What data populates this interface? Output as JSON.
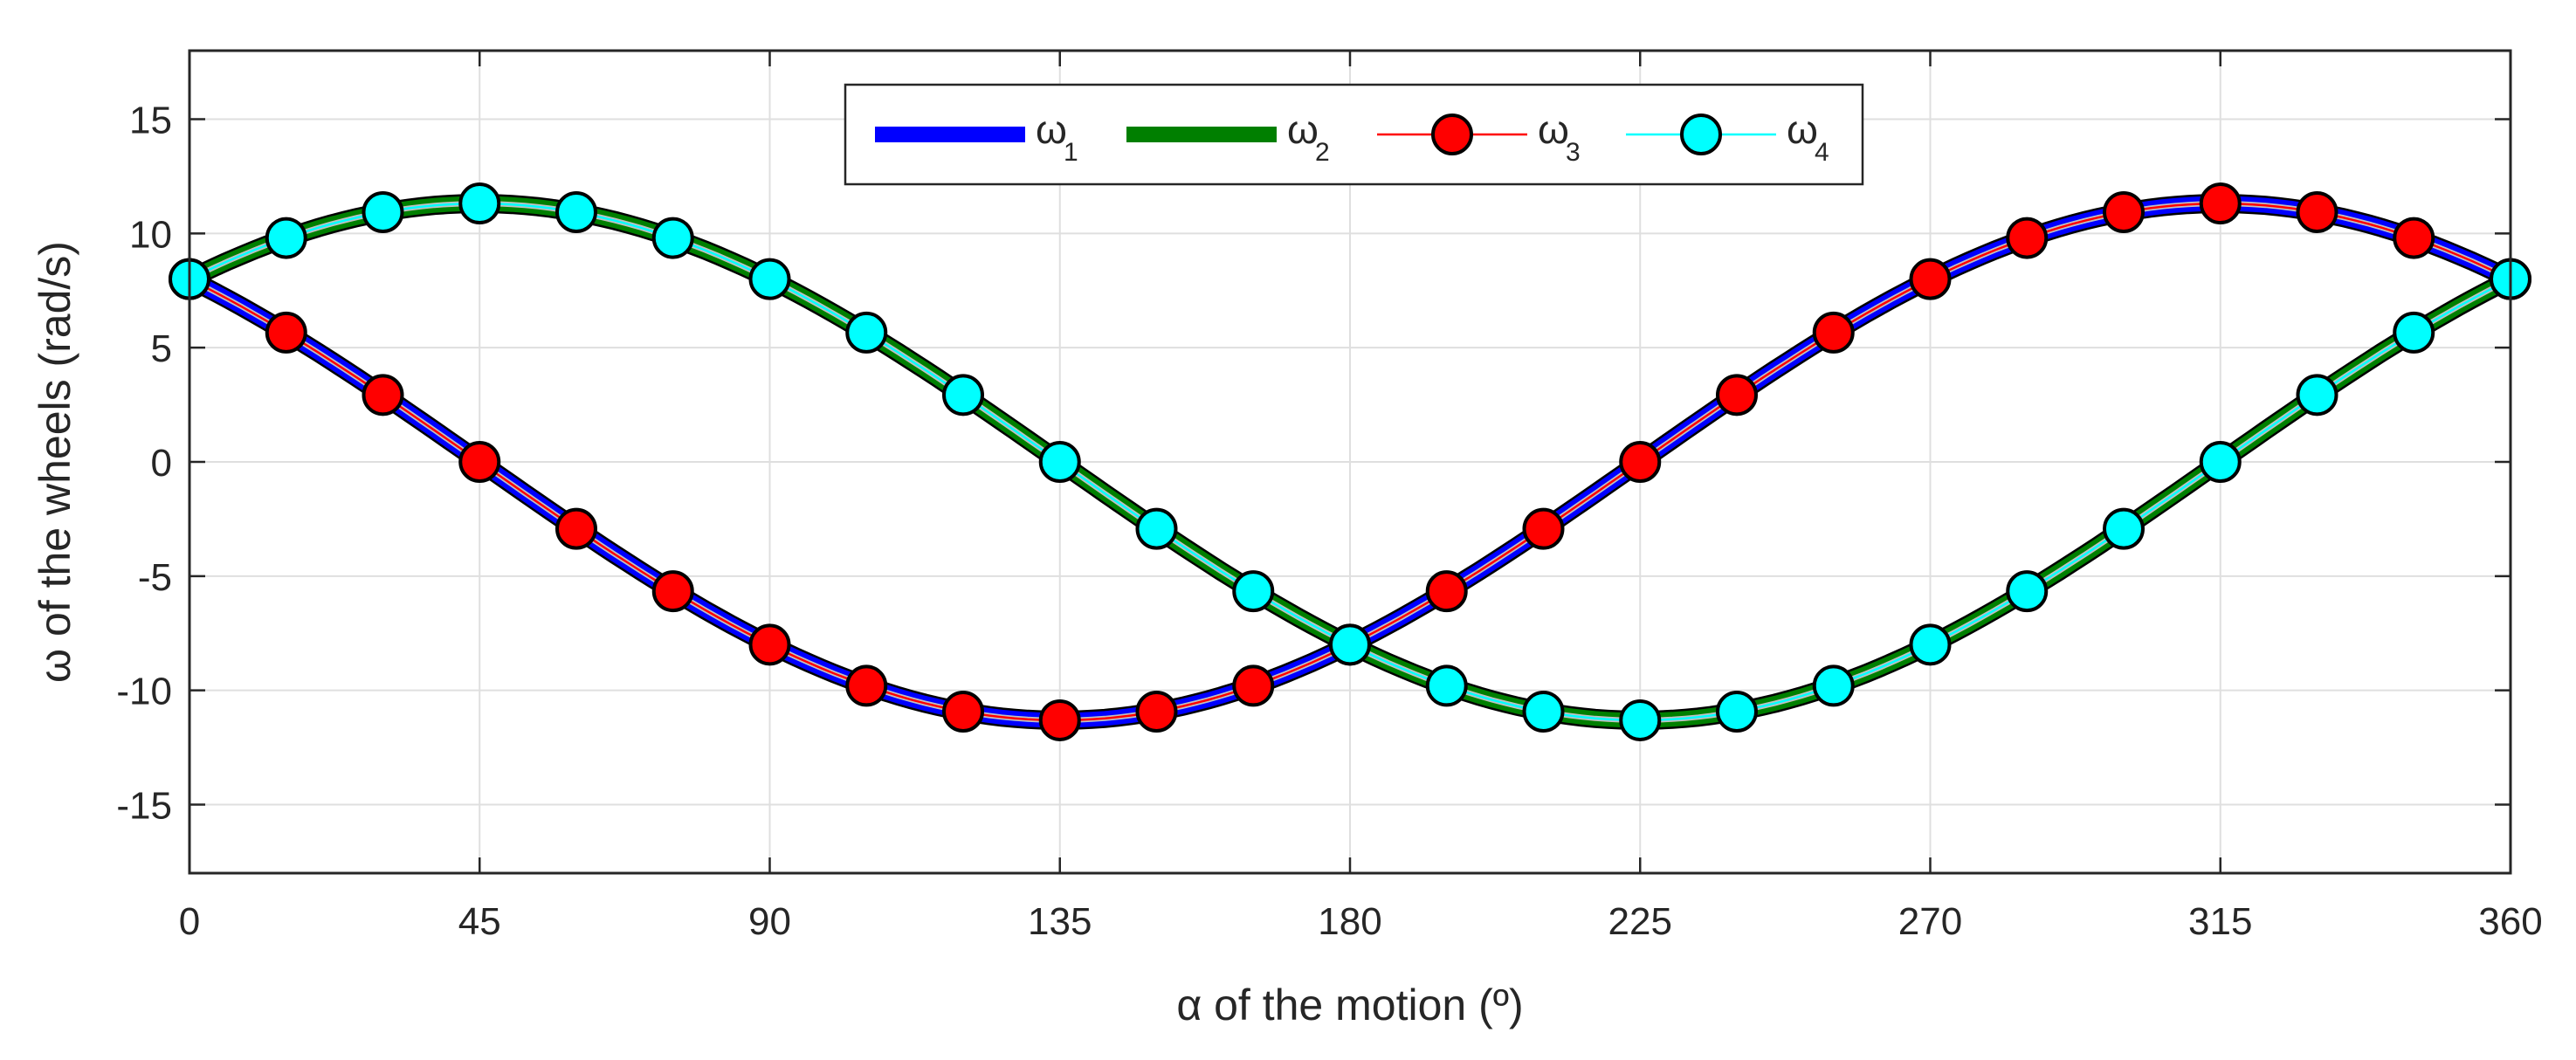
{
  "chart_data": {
    "type": "line",
    "title": "",
    "xlabel": "α of the motion (º)",
    "ylabel": "ω of the wheels (rad/s)",
    "xlim": [
      0,
      360
    ],
    "ylim": [
      -18,
      18
    ],
    "xticks": [
      0,
      45,
      90,
      135,
      180,
      225,
      270,
      315,
      360
    ],
    "yticks": [
      -15,
      -10,
      -5,
      0,
      5,
      10,
      15
    ],
    "grid": true,
    "legend_position": "top-center",
    "amplitude": 11.31,
    "series": [
      {
        "name": "ω",
        "subscript": "1",
        "color": "#0000ff",
        "style": "thick-line",
        "marker": "none",
        "x": [
          0,
          15,
          30,
          45,
          60,
          75,
          90,
          105,
          120,
          135,
          150,
          165,
          180,
          195,
          210,
          225,
          240,
          255,
          270,
          285,
          300,
          315,
          330,
          345,
          360
        ],
        "values": [
          8.0,
          5.66,
          2.93,
          0.0,
          -2.93,
          -5.66,
          -8.0,
          -9.8,
          -10.93,
          -11.31,
          -10.93,
          -9.8,
          -8.0,
          -5.66,
          -2.93,
          0.0,
          2.93,
          5.66,
          8.0,
          9.8,
          10.93,
          11.31,
          10.93,
          9.8,
          8.0
        ]
      },
      {
        "name": "ω",
        "subscript": "2",
        "color": "#007f00",
        "style": "thick-line",
        "marker": "none",
        "x": [
          0,
          15,
          30,
          45,
          60,
          75,
          90,
          105,
          120,
          135,
          150,
          165,
          180,
          195,
          210,
          225,
          240,
          255,
          270,
          285,
          300,
          315,
          330,
          345,
          360
        ],
        "values": [
          8.0,
          9.8,
          10.93,
          11.31,
          10.93,
          9.8,
          8.0,
          5.66,
          2.93,
          0.0,
          -2.93,
          -5.66,
          -8.0,
          -9.8,
          -10.93,
          -11.31,
          -10.93,
          -9.8,
          -8.0,
          -5.66,
          -2.93,
          0.0,
          2.93,
          5.66,
          8.0
        ]
      },
      {
        "name": "ω",
        "subscript": "3",
        "color": "#ff0000",
        "style": "thin-line",
        "marker": "circle",
        "x": [
          0,
          15,
          30,
          45,
          60,
          75,
          90,
          105,
          120,
          135,
          150,
          165,
          180,
          195,
          210,
          225,
          240,
          255,
          270,
          285,
          300,
          315,
          330,
          345,
          360
        ],
        "values": [
          8.0,
          5.66,
          2.93,
          0.0,
          -2.93,
          -5.66,
          -8.0,
          -9.8,
          -10.93,
          -11.31,
          -10.93,
          -9.8,
          -8.0,
          -5.66,
          -2.93,
          0.0,
          2.93,
          5.66,
          8.0,
          9.8,
          10.93,
          11.31,
          10.93,
          9.8,
          8.0
        ]
      },
      {
        "name": "ω",
        "subscript": "4",
        "color": "#00ffff",
        "style": "thin-line",
        "marker": "circle",
        "x": [
          0,
          15,
          30,
          45,
          60,
          75,
          90,
          105,
          120,
          135,
          150,
          165,
          180,
          195,
          210,
          225,
          240,
          255,
          270,
          285,
          300,
          315,
          330,
          345,
          360
        ],
        "values": [
          8.0,
          9.8,
          10.93,
          11.31,
          10.93,
          9.8,
          8.0,
          5.66,
          2.93,
          0.0,
          -2.93,
          -5.66,
          -8.0,
          -9.8,
          -10.93,
          -11.31,
          -10.93,
          -9.8,
          -8.0,
          -5.66,
          -2.93,
          0.0,
          2.93,
          5.66,
          8.0
        ]
      }
    ]
  },
  "colors": {
    "grid": "#dfdfdf",
    "axes": "#262626",
    "marker_edge": "#000000",
    "curve_core": "#c0c0c0"
  }
}
